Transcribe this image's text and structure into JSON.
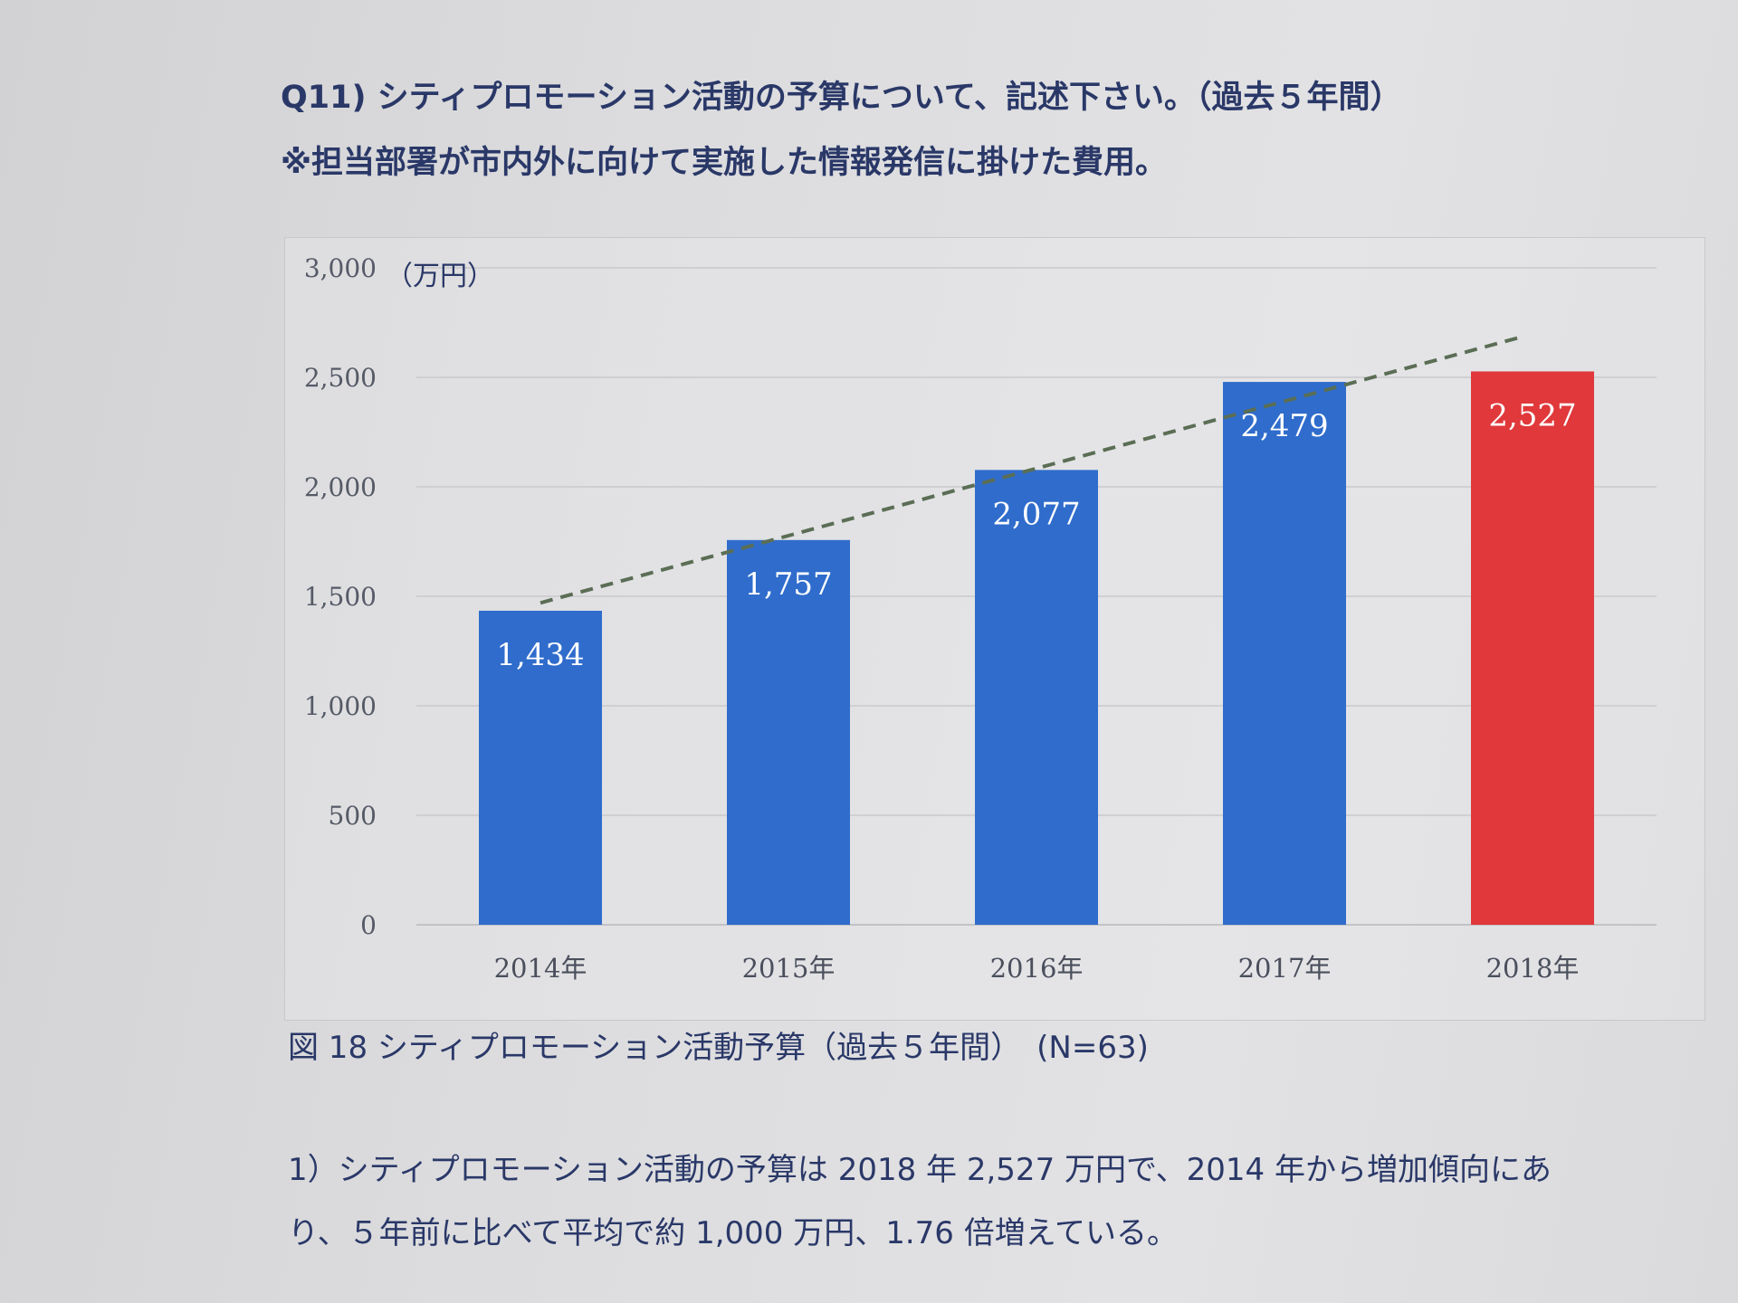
{
  "question": {
    "line1": "Q11) シティプロモーション活動の予算について、記述下さい。（過去５年間）",
    "line2": "※担当部署が市内外に向けて実施した情報発信に掛けた費用。"
  },
  "chart_data": {
    "type": "bar",
    "categories": [
      "2014年",
      "2015年",
      "2016年",
      "2017年",
      "2018年"
    ],
    "values": [
      1434,
      1757,
      2077,
      2479,
      2527
    ],
    "data_labels": [
      "1,434",
      "1,757",
      "2,077",
      "2,479",
      "2,527"
    ],
    "bar_colors": [
      "#2f6ccc",
      "#2f6ccc",
      "#2f6ccc",
      "#2f6ccc",
      "#e0383b"
    ],
    "ylabel": "（万円）",
    "ylim": [
      0,
      3000
    ],
    "yticks": [
      0,
      500,
      1000,
      1500,
      2000,
      2500,
      3000
    ],
    "ytick_labels": [
      "0",
      "500",
      "1,000",
      "1,500",
      "2,000",
      "2,500",
      "3,000"
    ],
    "grid": true,
    "trendline": {
      "style": "dashed",
      "color": "#5b6e55",
      "start": [
        2014,
        1470
      ],
      "end": [
        2018,
        2680
      ]
    }
  },
  "caption": "図 18 シティプロモーション活動予算（過去５年間）　(N=63)",
  "summary": {
    "line1": "1）シティプロモーション活動の予算は 2018 年 2,527 万円で、2014 年から増加傾向にあ",
    "line2": "り、５年前に比べて平均で約 1,000 万円、1.76 倍増えている。"
  }
}
